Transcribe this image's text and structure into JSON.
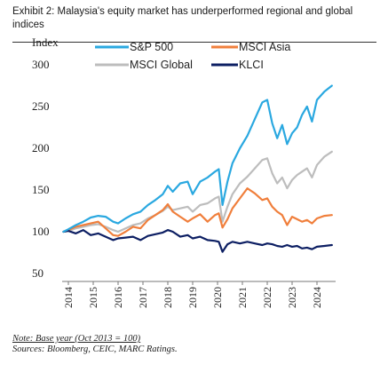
{
  "exhibit": {
    "title": "Exhibit 2: Malaysia's equity market has underperformed regional and global indices"
  },
  "footer": {
    "note": "Note: Base year (Oct 2013 = 100)",
    "sources": "Sources: Bloomberg, CEIC, MARC Ratings."
  },
  "chart_data": {
    "type": "line",
    "ylabel": "Index",
    "xlabel": "",
    "ylim": [
      50,
      300
    ],
    "yticks": [
      50,
      100,
      150,
      200,
      250,
      300
    ],
    "xlim": [
      2013.75,
      2024.75
    ],
    "xticks": [
      "2014",
      "2015",
      "2016",
      "2017",
      "2018",
      "2019",
      "2020",
      "2021",
      "2022",
      "2023",
      "2024"
    ],
    "grid": false,
    "legend_position": "top",
    "x": [
      2013.8,
      2014.0,
      2014.3,
      2014.6,
      2014.9,
      2015.2,
      2015.5,
      2015.8,
      2016.0,
      2016.3,
      2016.6,
      2016.9,
      2017.2,
      2017.5,
      2017.8,
      2018.0,
      2018.2,
      2018.5,
      2018.8,
      2019.0,
      2019.3,
      2019.6,
      2019.9,
      2020.05,
      2020.2,
      2020.4,
      2020.6,
      2020.9,
      2021.2,
      2021.5,
      2021.8,
      2022.0,
      2022.2,
      2022.4,
      2022.6,
      2022.8,
      2023.0,
      2023.2,
      2023.4,
      2023.6,
      2023.8,
      2024.0,
      2024.3,
      2024.6
    ],
    "series": [
      {
        "name": "S&P 500",
        "color": "#2aa8e0",
        "values": [
          100,
          103,
          108,
          112,
          117,
          119,
          118,
          112,
          110,
          116,
          121,
          124,
          132,
          138,
          145,
          155,
          148,
          158,
          160,
          145,
          160,
          165,
          172,
          175,
          132,
          160,
          182,
          200,
          215,
          235,
          255,
          258,
          230,
          212,
          228,
          205,
          218,
          225,
          240,
          250,
          232,
          258,
          268,
          275
        ]
      },
      {
        "name": "MSCI Asia",
        "color": "#f07f3c",
        "values": [
          100,
          102,
          106,
          108,
          110,
          112,
          104,
          96,
          95,
          100,
          106,
          104,
          114,
          120,
          126,
          133,
          124,
          118,
          112,
          116,
          121,
          112,
          120,
          122,
          105,
          115,
          128,
          140,
          152,
          146,
          138,
          140,
          130,
          124,
          120,
          108,
          118,
          115,
          112,
          114,
          110,
          116,
          119,
          120
        ]
      },
      {
        "name": "MSCI Global",
        "color": "#bdbdbd",
        "values": [
          100,
          101,
          104,
          106,
          108,
          109,
          106,
          102,
          100,
          104,
          108,
          110,
          116,
          120,
          125,
          130,
          126,
          128,
          130,
          124,
          132,
          134,
          140,
          142,
          112,
          130,
          145,
          158,
          166,
          176,
          186,
          188,
          170,
          158,
          165,
          152,
          162,
          168,
          172,
          176,
          165,
          180,
          190,
          196
        ]
      },
      {
        "name": "KLCI",
        "color": "#0d1f63",
        "values": [
          100,
          101,
          98,
          102,
          96,
          98,
          94,
          90,
          92,
          93,
          94,
          90,
          95,
          97,
          99,
          102,
          100,
          94,
          96,
          92,
          94,
          90,
          89,
          88,
          76,
          85,
          88,
          86,
          88,
          86,
          84,
          86,
          85,
          83,
          82,
          84,
          82,
          83,
          80,
          81,
          79,
          82,
          83,
          84
        ]
      }
    ]
  }
}
